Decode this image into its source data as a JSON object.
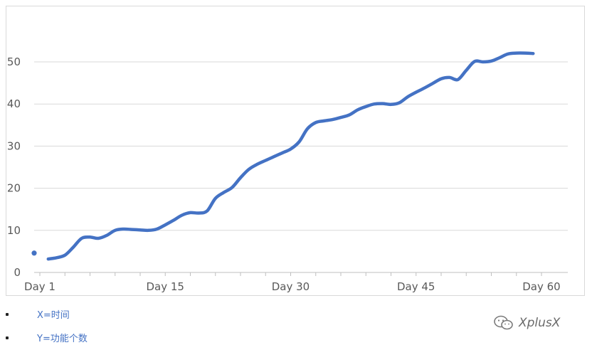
{
  "chart_data": {
    "type": "line",
    "title": "",
    "xlabel": "",
    "ylabel": "",
    "x_tick_labels": [
      "Day 1",
      "Day 15",
      "Day 30",
      "Day 45",
      "Day 60"
    ],
    "ylim": [
      0,
      60
    ],
    "y_ticks": [
      0,
      10,
      20,
      30,
      40,
      50
    ],
    "grid": "horizontal",
    "series": [
      {
        "color": "#4472c4",
        "x": [
          1,
          2,
          3,
          4,
          5,
          6,
          7,
          8,
          9,
          10,
          11,
          12,
          13,
          14,
          15,
          16,
          17,
          18,
          19,
          20,
          21,
          22,
          23,
          24,
          25,
          26,
          27,
          28,
          29,
          30,
          31,
          32,
          33,
          34,
          35,
          36,
          37,
          38,
          39,
          40,
          41,
          42,
          43,
          44,
          45,
          46,
          47,
          48,
          49,
          50,
          51,
          52,
          53,
          54,
          55,
          56,
          57,
          58,
          59
        ],
        "values": [
          3.2,
          3.5,
          4.1,
          6.0,
          8.1,
          8.4,
          8.1,
          8.8,
          10.0,
          10.3,
          10.2,
          10.1,
          10.0,
          10.3,
          11.3,
          12.4,
          13.6,
          14.2,
          14.1,
          14.6,
          17.6,
          19.0,
          20.2,
          22.5,
          24.5,
          25.7,
          26.6,
          27.5,
          28.4,
          29.3,
          31.0,
          34.1,
          35.6,
          36.0,
          36.3,
          36.8,
          37.4,
          38.6,
          39.4,
          40.0,
          40.1,
          39.9,
          40.3,
          41.7,
          42.8,
          43.8,
          44.9,
          46.0,
          46.3,
          45.8,
          48.0,
          50.1,
          50.0,
          50.2,
          51.0,
          51.9,
          52.1,
          52.1,
          52.0
        ]
      }
    ],
    "stray_marker": {
      "x": 0,
      "y": 4.6
    }
  },
  "notes": [
    "X=时间",
    "Y=功能个数"
  ],
  "watermark": {
    "text": "XplusX",
    "icon": "wechat-icon"
  }
}
